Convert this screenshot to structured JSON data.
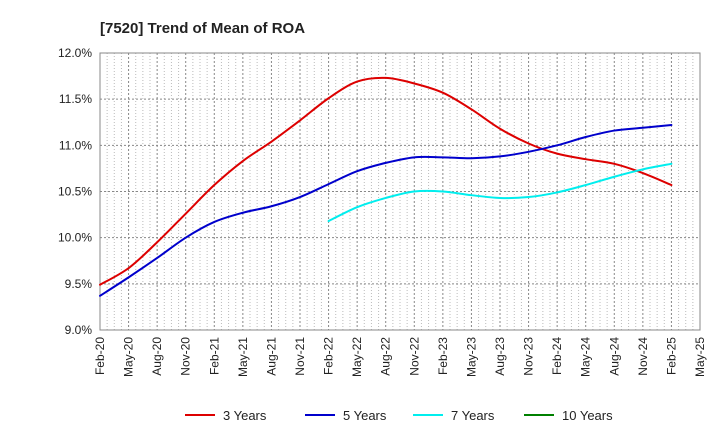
{
  "chart_data": {
    "type": "line",
    "title": "[7520]  Trend of Mean of ROA",
    "xlabel": "",
    "ylabel": "",
    "ylim": [
      9.0,
      12.0
    ],
    "y_ticks": [
      "9.0%",
      "9.5%",
      "10.0%",
      "10.5%",
      "11.0%",
      "11.5%",
      "12.0%"
    ],
    "y_tick_values": [
      9.0,
      9.5,
      10.0,
      10.5,
      11.0,
      11.5,
      12.0
    ],
    "categories": [
      "Feb-20",
      "May-20",
      "Aug-20",
      "Nov-20",
      "Feb-21",
      "May-21",
      "Aug-21",
      "Nov-21",
      "Feb-22",
      "May-22",
      "Aug-22",
      "Nov-22",
      "Feb-23",
      "May-23",
      "Aug-23",
      "Nov-23",
      "Feb-24",
      "May-24",
      "Aug-24",
      "Nov-24",
      "Feb-25",
      "May-25"
    ],
    "grid": true,
    "legend_position": "bottom",
    "series": [
      {
        "name": "3 Years",
        "color": "#dd0000",
        "values": [
          9.49,
          9.67,
          9.95,
          10.26,
          10.57,
          10.83,
          11.04,
          11.27,
          11.51,
          11.69,
          11.73,
          11.67,
          11.57,
          11.39,
          11.18,
          11.02,
          10.91,
          10.85,
          10.8,
          10.7,
          10.57,
          null
        ]
      },
      {
        "name": "5 Years",
        "color": "#0000cc",
        "values": [
          9.37,
          9.57,
          9.78,
          10.0,
          10.17,
          10.27,
          10.34,
          10.44,
          10.58,
          10.72,
          10.81,
          10.87,
          10.87,
          10.86,
          10.88,
          10.93,
          11.0,
          11.09,
          11.16,
          11.19,
          11.22,
          null
        ]
      },
      {
        "name": "7 Years",
        "color": "#00eeee",
        "values": [
          null,
          null,
          null,
          null,
          null,
          null,
          null,
          null,
          10.18,
          10.33,
          10.43,
          10.5,
          10.5,
          10.46,
          10.43,
          10.44,
          10.49,
          10.57,
          10.66,
          10.74,
          10.8,
          null
        ]
      },
      {
        "name": "10 Years",
        "color": "#008000",
        "values": [
          null,
          null,
          null,
          null,
          null,
          null,
          null,
          null,
          null,
          null,
          null,
          null,
          null,
          null,
          null,
          null,
          null,
          null,
          null,
          null,
          null,
          null
        ]
      }
    ]
  }
}
